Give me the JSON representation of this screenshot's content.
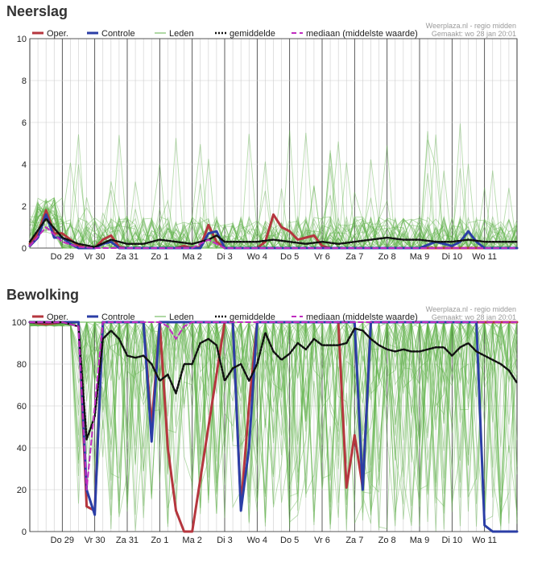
{
  "panels": [
    {
      "id": "neerslag",
      "title": "Neerslag",
      "credit_line1": "Weerplaza.nl - regio midden",
      "credit_line2": "Gemaakt: wo 28 jan 20:01"
    },
    {
      "id": "bewolking",
      "title": "Bewolking",
      "credit_line1": "Weerplaza.nl - regio midden",
      "credit_line2": "Gemaakt: wo 28 jan 20:01"
    }
  ],
  "colors": {
    "oper": "#b5363e",
    "controle": "#2b3ea6",
    "leden": "#5fb24a",
    "gemiddelde": "#111111",
    "mediaan": "#c02cc0",
    "grid_major": "#333333",
    "grid_minor": "#cccccc"
  },
  "chart_data": [
    {
      "type": "line",
      "title": "Neerslag",
      "ylim": [
        0,
        10
      ],
      "yticks": [
        0,
        2,
        4,
        6,
        8,
        10
      ],
      "xlim": [
        0,
        15
      ],
      "day_labels": [
        "Do 29",
        "Vr 30",
        "Za 31",
        "Zo 1",
        "Ma 2",
        "Di 3",
        "Wo 4",
        "Do 5",
        "Vr 6",
        "Za 7",
        "Zo 8",
        "Ma 9",
        "Di 10",
        "Wo 11"
      ],
      "legend": [
        "Oper.",
        "Controle",
        "Leden",
        "gemiddelde",
        "mediaan (middelste waarde)"
      ],
      "series": [
        {
          "name": "Oper.",
          "x": [
            0,
            0.25,
            0.5,
            0.75,
            1,
            1.25,
            1.5,
            1.75,
            2,
            2.25,
            2.5,
            2.75,
            3,
            3.25,
            3.5,
            3.75,
            4,
            4.25,
            4.5,
            4.75,
            5,
            5.25,
            5.5,
            5.75,
            6,
            6.25,
            6.5,
            6.75,
            7,
            7.25,
            7.5,
            7.75,
            8,
            8.25,
            8.5,
            8.75,
            9,
            9.25,
            9.5,
            9.75,
            10,
            15
          ],
          "values": [
            0.2,
            0.7,
            1.8,
            0.7,
            0.7,
            0.4,
            0.1,
            0,
            0,
            0.4,
            0.6,
            0.05,
            0,
            0,
            0,
            0,
            0,
            0,
            0,
            0.1,
            0,
            0.05,
            1.1,
            0.3,
            0,
            0,
            0,
            0,
            0,
            0.3,
            1.6,
            1.0,
            0.8,
            0.4,
            0.5,
            0.6,
            0.1,
            0,
            0,
            0,
            0,
            0
          ]
        },
        {
          "name": "Controle",
          "x": [
            0,
            0.25,
            0.5,
            0.75,
            1,
            1.25,
            1.5,
            1.75,
            2,
            2.25,
            2.5,
            2.75,
            3,
            3.5,
            4,
            4.5,
            5,
            5.25,
            5.5,
            5.75,
            6,
            6.25,
            6.5,
            9,
            10,
            11,
            12,
            12.5,
            13,
            13.25,
            13.5,
            13.75,
            14,
            14.5,
            15
          ],
          "values": [
            0.1,
            0.5,
            1.6,
            0.5,
            0.5,
            0.2,
            0,
            0,
            0,
            0.2,
            0.3,
            0,
            0,
            0,
            0,
            0,
            0,
            0,
            0.7,
            0.8,
            0,
            0,
            0,
            0,
            0,
            0,
            0,
            0.3,
            0.1,
            0.3,
            0.8,
            0.3,
            0,
            0,
            0
          ]
        },
        {
          "name": "gemiddelde",
          "x": [
            0,
            0.5,
            1,
            1.5,
            2,
            2.5,
            3,
            3.5,
            4,
            4.5,
            5,
            5.5,
            5.75,
            6,
            6.5,
            7,
            7.5,
            8,
            8.5,
            9,
            9.5,
            10,
            10.5,
            11,
            11.5,
            12,
            12.5,
            13,
            13.5,
            14,
            14.5,
            15
          ],
          "values": [
            0.3,
            1.4,
            0.5,
            0.2,
            0.05,
            0.4,
            0.2,
            0.2,
            0.4,
            0.3,
            0.2,
            0.4,
            0.6,
            0.3,
            0.3,
            0.3,
            0.4,
            0.3,
            0.2,
            0.3,
            0.2,
            0.3,
            0.4,
            0.5,
            0.4,
            0.4,
            0.3,
            0.3,
            0.4,
            0.3,
            0.3,
            0.3
          ]
        },
        {
          "name": "mediaan (middelste waarde)",
          "x": [
            0,
            0.5,
            1,
            1.5,
            2,
            3,
            4,
            5,
            5.5,
            6,
            7,
            8,
            9,
            10,
            11,
            12,
            13,
            14,
            15
          ],
          "values": [
            0.1,
            1.0,
            0.3,
            0.05,
            0,
            0,
            0,
            0,
            0.4,
            0,
            0,
            0,
            0,
            0,
            0,
            0,
            0,
            0,
            0
          ]
        }
      ]
    },
    {
      "type": "line",
      "title": "Bewolking",
      "ylim": [
        0,
        100
      ],
      "yticks": [
        0,
        20,
        40,
        60,
        80,
        100
      ],
      "xlim": [
        0,
        15
      ],
      "day_labels": [
        "Do 29",
        "Vr 30",
        "Za 31",
        "Zo 1",
        "Ma 2",
        "Di 3",
        "Wo 4",
        "Do 5",
        "Vr 6",
        "Za 7",
        "Zo 8",
        "Ma 9",
        "Di 10",
        "Wo 11"
      ],
      "legend": [
        "Oper.",
        "Controle",
        "Leden",
        "gemiddelde",
        "mediaan (middelste waarde)"
      ],
      "series": [
        {
          "name": "Oper.",
          "x": [
            0,
            0.5,
            1,
            1.5,
            1.75,
            2,
            2.25,
            2.5,
            3,
            3.5,
            3.75,
            4,
            4.25,
            4.5,
            4.75,
            5,
            6,
            6.25,
            6.5,
            6.75,
            7,
            9.5,
            9.75,
            10,
            10.25,
            10.5,
            15
          ],
          "values": [
            100,
            99,
            100,
            100,
            12,
            10,
            100,
            100,
            100,
            100,
            50,
            100,
            40,
            10,
            0,
            0,
            100,
            100,
            12,
            60,
            100,
            100,
            21,
            46,
            21,
            100,
            100
          ]
        },
        {
          "name": "Controle",
          "x": [
            0,
            1,
            1.5,
            1.75,
            2,
            2.25,
            2.5,
            3.5,
            3.75,
            4,
            5,
            6,
            6.25,
            6.5,
            6.75,
            7,
            8,
            9.5,
            10,
            10.25,
            10.5,
            11,
            13,
            13.5,
            13.75,
            14,
            14.25,
            14.5,
            15
          ],
          "values": [
            100,
            100,
            100,
            20,
            8,
            100,
            100,
            100,
            43,
            100,
            100,
            100,
            100,
            10,
            40,
            100,
            100,
            100,
            100,
            20,
            100,
            100,
            100,
            100,
            100,
            3,
            0,
            0,
            0
          ]
        },
        {
          "name": "gemiddelde",
          "x": [
            0,
            1,
            1.5,
            1.75,
            2,
            2.25,
            2.5,
            2.75,
            3,
            3.25,
            3.5,
            3.75,
            4,
            4.25,
            4.5,
            4.75,
            5,
            5.25,
            5.5,
            5.75,
            6,
            6.25,
            6.5,
            6.75,
            7,
            7.25,
            7.5,
            7.75,
            8,
            8.25,
            8.5,
            8.75,
            9,
            9.25,
            9.5,
            9.75,
            10,
            10.25,
            10.5,
            10.75,
            11,
            11.25,
            11.5,
            11.75,
            12,
            12.25,
            12.5,
            12.75,
            13,
            13.25,
            13.5,
            13.75,
            14,
            14.25,
            14.5,
            14.75,
            15
          ],
          "values": [
            100,
            100,
            98,
            44,
            55,
            92,
            96,
            92,
            84,
            83,
            84,
            80,
            72,
            75,
            66,
            80,
            80,
            90,
            92,
            89,
            72,
            78,
            80,
            72,
            80,
            95,
            86,
            82,
            85,
            90,
            87,
            92,
            89,
            89,
            89,
            90,
            97,
            96,
            92,
            89,
            87,
            86,
            87,
            86,
            86,
            87,
            88,
            88,
            84,
            88,
            90,
            86,
            84,
            82,
            80,
            77,
            71
          ]
        },
        {
          "name": "mediaan (middelste waarde)",
          "x": [
            0,
            1,
            1.5,
            1.75,
            2,
            2.25,
            2.5,
            3,
            3.5,
            4,
            4.25,
            4.5,
            4.75,
            5,
            6,
            10,
            15
          ],
          "values": [
            100,
            100,
            98,
            20,
            60,
            100,
            100,
            100,
            100,
            100,
            98,
            92,
            98,
            100,
            100,
            100,
            100
          ]
        }
      ]
    }
  ]
}
